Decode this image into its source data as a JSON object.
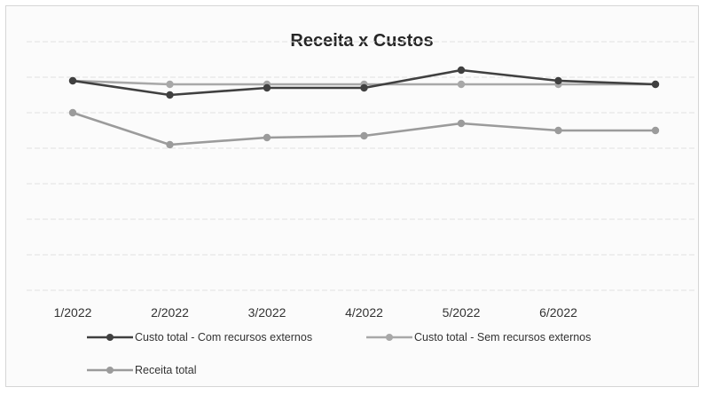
{
  "chart_data": {
    "type": "line",
    "title": "Receita x Custos",
    "xlabel": "",
    "ylabel": "",
    "categories": [
      "1/2022",
      "2/2022",
      "3/2022",
      "4/2022",
      "5/2022",
      "6/2022",
      ""
    ],
    "ylim": [
      0,
      7
    ],
    "grid": true,
    "y_tick_labels_visible": false,
    "legend_position": "bottom",
    "series": [
      {
        "name": "Custo total - Com recursos externos",
        "color": "#404040",
        "marker": "circle",
        "values": [
          5.9,
          5.5,
          5.7,
          5.7,
          6.2,
          5.9,
          5.8
        ]
      },
      {
        "name": "Custo total - Sem recursos externos",
        "color": "#a8a8a8",
        "marker": "circle",
        "values": [
          5.9,
          5.8,
          5.8,
          5.8,
          5.8,
          5.8,
          5.8
        ]
      },
      {
        "name": "Receita total",
        "color": "#9b9b9b",
        "marker": "circle",
        "values": [
          5.0,
          4.1,
          4.3,
          4.35,
          4.7,
          4.5,
          4.5
        ]
      }
    ]
  }
}
